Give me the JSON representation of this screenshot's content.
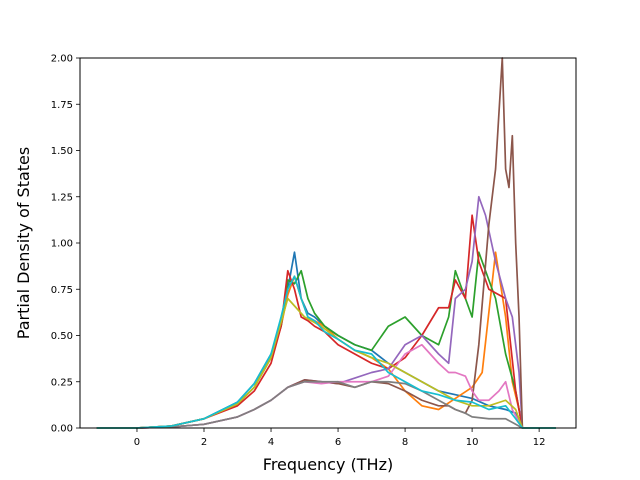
{
  "chart_data": {
    "type": "line",
    "title": "",
    "xlabel": "Frequency (THz)",
    "ylabel": "Partial Density of States",
    "xlim": [
      -1.7,
      13.1
    ],
    "ylim": [
      0.0,
      2.0
    ],
    "xticks": [
      0,
      2,
      4,
      6,
      8,
      10,
      12
    ],
    "xtick_labels": [
      "0",
      "2",
      "4",
      "6",
      "8",
      "10",
      "12"
    ],
    "yticks": [
      0.0,
      0.25,
      0.5,
      0.75,
      1.0,
      1.25,
      1.5,
      1.75,
      2.0
    ],
    "ytick_labels": [
      "0.00",
      "0.25",
      "0.50",
      "0.75",
      "1.00",
      "1.25",
      "1.50",
      "1.75",
      "2.00"
    ],
    "grid": false,
    "legend": "none",
    "series": [
      {
        "color": "#1f77b4",
        "x": [
          -1.2,
          0,
          1,
          2,
          3,
          3.5,
          4,
          4.3,
          4.5,
          4.7,
          4.9,
          5.1,
          5.3,
          5.6,
          6,
          6.5,
          7,
          7.5,
          8,
          8.5,
          9,
          9.5,
          10,
          10.5,
          11,
          11.3,
          11.5,
          12.5
        ],
        "y": [
          0,
          0,
          0.01,
          0.05,
          0.14,
          0.24,
          0.4,
          0.55,
          0.75,
          0.95,
          0.7,
          0.62,
          0.6,
          0.55,
          0.5,
          0.45,
          0.42,
          0.35,
          0.3,
          0.25,
          0.2,
          0.18,
          0.16,
          0.12,
          0.1,
          0.08,
          0,
          0
        ]
      },
      {
        "color": "#ff7f0e",
        "x": [
          -1.2,
          0,
          1,
          2,
          3,
          3.5,
          4,
          4.3,
          4.5,
          4.7,
          4.9,
          5.1,
          5.3,
          5.6,
          6,
          6.5,
          7,
          7.5,
          8,
          8.5,
          9,
          9.5,
          10,
          10.3,
          10.7,
          11,
          11.2,
          11.4,
          11.5,
          12.5
        ],
        "y": [
          0,
          0,
          0.01,
          0.05,
          0.13,
          0.22,
          0.38,
          0.55,
          0.72,
          0.82,
          0.7,
          0.6,
          0.58,
          0.55,
          0.48,
          0.42,
          0.38,
          0.32,
          0.2,
          0.12,
          0.1,
          0.16,
          0.22,
          0.3,
          0.95,
          0.6,
          0.25,
          0.1,
          0,
          0
        ]
      },
      {
        "color": "#2ca02c",
        "x": [
          -1.2,
          0,
          1,
          2,
          3,
          3.5,
          4,
          4.3,
          4.5,
          4.7,
          4.9,
          5.1,
          5.3,
          5.6,
          6,
          6.5,
          7,
          7.5,
          8,
          8.5,
          9,
          9.3,
          9.5,
          9.8,
          10,
          10.2,
          10.4,
          10.7,
          11,
          11.3,
          11.5,
          12.5
        ],
        "y": [
          0,
          0,
          0.01,
          0.05,
          0.13,
          0.22,
          0.38,
          0.55,
          0.8,
          0.78,
          0.85,
          0.7,
          0.62,
          0.55,
          0.5,
          0.45,
          0.42,
          0.55,
          0.6,
          0.5,
          0.45,
          0.6,
          0.85,
          0.7,
          0.6,
          0.95,
          0.85,
          0.7,
          0.4,
          0.2,
          0,
          0
        ]
      },
      {
        "color": "#d62728",
        "x": [
          -1.2,
          0,
          1,
          2,
          3,
          3.5,
          4,
          4.3,
          4.5,
          4.7,
          4.9,
          5.1,
          5.3,
          5.6,
          6,
          6.5,
          7,
          7.5,
          8,
          8.5,
          9,
          9.3,
          9.5,
          9.8,
          10,
          10.2,
          10.5,
          11,
          11.3,
          11.5,
          12.5
        ],
        "y": [
          0,
          0,
          0.01,
          0.05,
          0.12,
          0.2,
          0.35,
          0.55,
          0.85,
          0.75,
          0.6,
          0.58,
          0.55,
          0.52,
          0.45,
          0.4,
          0.35,
          0.32,
          0.38,
          0.5,
          0.65,
          0.65,
          0.8,
          0.7,
          1.15,
          0.9,
          0.75,
          0.7,
          0.2,
          0,
          0
        ]
      },
      {
        "color": "#9467bd",
        "x": [
          -1.2,
          0,
          1,
          2,
          3,
          3.5,
          4,
          4.5,
          5,
          5.5,
          6,
          6.5,
          7,
          7.5,
          8,
          8.5,
          9,
          9.3,
          9.5,
          9.8,
          10,
          10.2,
          10.4,
          10.7,
          11,
          11.2,
          11.4,
          11.5,
          12.5
        ],
        "y": [
          0,
          0,
          0.005,
          0.02,
          0.06,
          0.1,
          0.15,
          0.22,
          0.26,
          0.25,
          0.24,
          0.27,
          0.3,
          0.32,
          0.45,
          0.5,
          0.4,
          0.35,
          0.7,
          0.75,
          0.9,
          1.25,
          1.15,
          0.9,
          0.7,
          0.6,
          0.3,
          0,
          0
        ]
      },
      {
        "color": "#8c564b",
        "x": [
          -1.2,
          0,
          1,
          2,
          3,
          3.5,
          4,
          4.5,
          5,
          5.5,
          6,
          6.5,
          7,
          7.5,
          8,
          8.5,
          9,
          9.3,
          9.5,
          9.8,
          10,
          10.2,
          10.5,
          10.7,
          10.9,
          11,
          11.1,
          11.2,
          11.3,
          11.4,
          11.5,
          12.5
        ],
        "y": [
          0,
          0,
          0.005,
          0.02,
          0.06,
          0.1,
          0.15,
          0.22,
          0.26,
          0.25,
          0.24,
          0.22,
          0.25,
          0.24,
          0.2,
          0.15,
          0.12,
          0.12,
          0.1,
          0.08,
          0.15,
          0.45,
          1.1,
          1.4,
          2.0,
          1.4,
          1.3,
          1.58,
          1.0,
          0.6,
          0,
          0
        ]
      },
      {
        "color": "#e377c2",
        "x": [
          -1.2,
          0,
          1,
          2,
          3,
          3.5,
          4,
          4.5,
          5,
          5.5,
          6,
          6.5,
          7,
          7.5,
          8,
          8.5,
          9,
          9.3,
          9.5,
          9.8,
          10,
          10.2,
          10.5,
          10.8,
          11,
          11.2,
          11.5,
          12.5
        ],
        "y": [
          0,
          0,
          0.005,
          0.02,
          0.06,
          0.1,
          0.15,
          0.22,
          0.25,
          0.24,
          0.25,
          0.25,
          0.25,
          0.28,
          0.4,
          0.45,
          0.35,
          0.3,
          0.3,
          0.28,
          0.2,
          0.15,
          0.15,
          0.2,
          0.25,
          0.1,
          0,
          0
        ]
      },
      {
        "color": "#7f7f7f",
        "x": [
          -1.2,
          0,
          1,
          2,
          3,
          3.5,
          4,
          4.5,
          5,
          5.5,
          6,
          6.5,
          7,
          7.5,
          8,
          8.5,
          9,
          9.3,
          9.5,
          9.8,
          10,
          10.5,
          11,
          11.3,
          11.5,
          12.5
        ],
        "y": [
          0,
          0,
          0.005,
          0.02,
          0.06,
          0.1,
          0.15,
          0.22,
          0.25,
          0.25,
          0.25,
          0.22,
          0.25,
          0.25,
          0.24,
          0.2,
          0.15,
          0.12,
          0.1,
          0.08,
          0.06,
          0.05,
          0.05,
          0.02,
          0,
          0
        ]
      },
      {
        "color": "#bcbd22",
        "x": [
          -1.2,
          0,
          1,
          2,
          3,
          3.5,
          4,
          4.5,
          5,
          5.5,
          6,
          6.5,
          7,
          7.5,
          8,
          8.5,
          9,
          9.5,
          10,
          10.5,
          11,
          11.3,
          11.5,
          12.5
        ],
        "y": [
          0,
          0,
          0.01,
          0.05,
          0.13,
          0.22,
          0.38,
          0.7,
          0.6,
          0.55,
          0.48,
          0.42,
          0.38,
          0.35,
          0.3,
          0.25,
          0.2,
          0.15,
          0.12,
          0.12,
          0.15,
          0.1,
          0,
          0
        ]
      },
      {
        "color": "#17becf",
        "x": [
          -1.2,
          0,
          1,
          2,
          3,
          3.5,
          4,
          4.3,
          4.5,
          4.7,
          4.9,
          5.1,
          5.3,
          5.6,
          6,
          6.5,
          7,
          7.5,
          8,
          8.5,
          9,
          9.5,
          10,
          10.5,
          11,
          11.3,
          11.5,
          12.5
        ],
        "y": [
          0,
          0,
          0.01,
          0.05,
          0.14,
          0.24,
          0.4,
          0.6,
          0.75,
          0.82,
          0.7,
          0.6,
          0.58,
          0.52,
          0.48,
          0.42,
          0.4,
          0.3,
          0.25,
          0.2,
          0.18,
          0.15,
          0.14,
          0.1,
          0.12,
          0.05,
          0,
          0
        ]
      }
    ]
  }
}
